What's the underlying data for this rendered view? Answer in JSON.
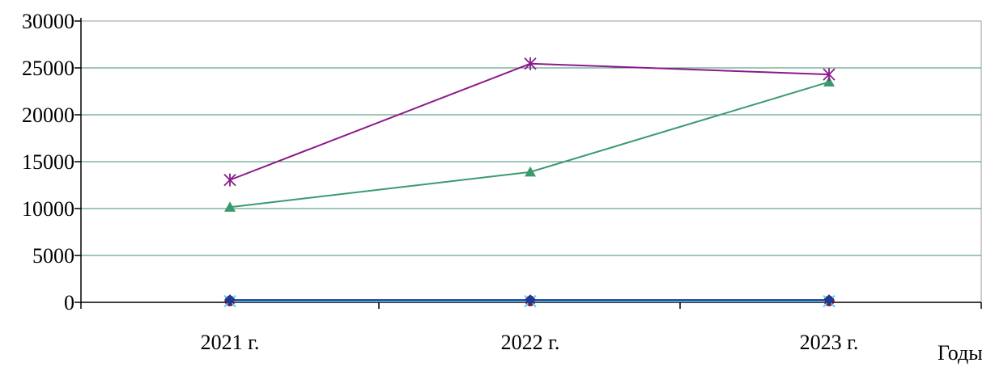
{
  "chart_data": {
    "type": "line",
    "title": "",
    "xlabel": "Годы",
    "ylabel": "",
    "categories": [
      "2021 г.",
      "2022 г.",
      "2023 г."
    ],
    "y_ticks": [
      "0",
      "5000",
      "10000",
      "15000",
      "20000",
      "25000",
      "30000"
    ],
    "ylim": [
      0,
      30000
    ],
    "grid": "horizontal",
    "legend": "none",
    "series": [
      {
        "values": [
          13050,
          25450,
          24300
        ],
        "color": "#8b1a8b",
        "marker": "asterisk"
      },
      {
        "values": [
          10150,
          13900,
          23500
        ],
        "color": "#3a9a6e",
        "marker": "triangle"
      },
      {
        "values": [
          250,
          250,
          250
        ],
        "color": "#1f3a93",
        "marker": "diamond"
      },
      {
        "values": [
          120,
          120,
          120
        ],
        "color": "#66ccff",
        "marker": "x"
      },
      {
        "values": [
          150,
          150,
          150
        ],
        "color": "#8b0000",
        "marker": "circle"
      }
    ],
    "colors": {
      "grid": "#3f8f76",
      "axis": "#000000",
      "frame": "#999999"
    }
  }
}
